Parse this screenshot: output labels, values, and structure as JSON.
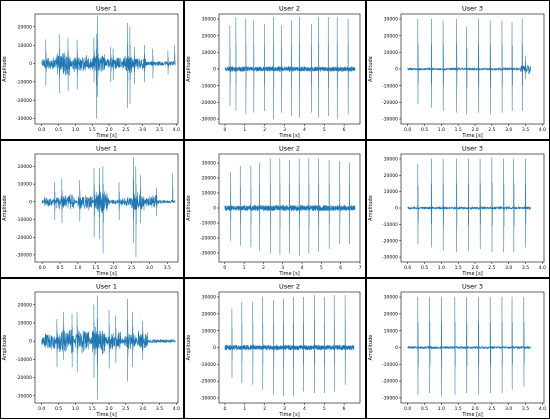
{
  "colors": {
    "line": "#1f77b4",
    "axis": "#000000",
    "border": "#000000",
    "background": "#ffffff"
  },
  "chart_data": [
    {
      "type": "line",
      "title": "User 1",
      "xlabel": "Time [s]",
      "ylabel": "Amplitude",
      "xlim": [
        -0.2,
        4.05
      ],
      "ylim": [
        -33000,
        27000
      ],
      "xticks": [
        "0.0",
        "0.5",
        "1.0",
        "1.5",
        "2.0",
        "2.5",
        "3.0",
        "3.5",
        "4.0"
      ],
      "xtick_values": [
        0,
        0.5,
        1,
        1.5,
        2,
        2.5,
        3,
        3.5,
        4
      ],
      "yticks": [
        "-30000",
        "-20000",
        "-10000",
        "0",
        "10000",
        "20000"
      ],
      "ytick_values": [
        -30000,
        -20000,
        -10000,
        0,
        10000,
        20000
      ],
      "duration": 3.97,
      "noise_amplitude": 3500,
      "noise_until": 3.1,
      "tail_noise": 1500,
      "bursts": [
        [
          0.05,
          0.35,
          4000
        ],
        [
          0.45,
          0.85,
          7000
        ],
        [
          0.95,
          1.35,
          5000
        ],
        [
          1.5,
          1.9,
          6000
        ],
        [
          2.05,
          2.4,
          3000
        ],
        [
          2.45,
          2.7,
          6000
        ],
        [
          2.85,
          3.1,
          4000
        ]
      ],
      "spikes": [
        [
          0.12,
          13000,
          -12000
        ],
        [
          0.52,
          16000,
          -16000
        ],
        [
          0.78,
          14000,
          -15000
        ],
        [
          1.05,
          13000,
          -14000
        ],
        [
          1.55,
          14000,
          -10000
        ],
        [
          1.62,
          16000,
          -30000
        ],
        [
          1.66,
          26000,
          -18000
        ],
        [
          2.05,
          9000,
          -10000
        ],
        [
          2.12,
          8000,
          -9000
        ],
        [
          2.55,
          22000,
          -24000
        ],
        [
          2.62,
          20000,
          -22000
        ],
        [
          2.75,
          9000,
          -11000
        ],
        [
          3.05,
          10000,
          -10000
        ],
        [
          3.3,
          8000,
          -8000
        ],
        [
          3.75,
          7000,
          -6000
        ],
        [
          3.95,
          10000,
          0
        ]
      ]
    },
    {
      "type": "line",
      "title": "User 2",
      "xlabel": "Time [s]",
      "ylabel": "Amplitude",
      "xlim": [
        -0.3,
        6.8
      ],
      "ylim": [
        -33000,
        33000
      ],
      "xticks": [
        "0",
        "1",
        "2",
        "3",
        "4",
        "5",
        "6"
      ],
      "xtick_values": [
        0,
        1,
        2,
        3,
        4,
        5,
        6
      ],
      "yticks": [
        "-30000",
        "-20000",
        "-10000",
        "0",
        "10000",
        "20000",
        "30000"
      ],
      "ytick_values": [
        -30000,
        -20000,
        -10000,
        0,
        10000,
        20000,
        30000
      ],
      "duration": 6.55,
      "noise_amplitude": 1700,
      "noise_until": 6.55,
      "tail_noise": 1700,
      "bursts": [],
      "spikes": [
        [
          0.25,
          26000,
          -22000
        ],
        [
          0.55,
          31000,
          -25000
        ],
        [
          1.05,
          30000,
          -27000
        ],
        [
          1.45,
          29000,
          -26000
        ],
        [
          1.98,
          27000,
          -25000
        ],
        [
          2.45,
          31000,
          -30000
        ],
        [
          2.85,
          26000,
          -26000
        ],
        [
          3.35,
          29000,
          -28000
        ],
        [
          3.75,
          31000,
          -29000
        ],
        [
          4.35,
          27000,
          -26000
        ],
        [
          4.7,
          31000,
          -29000
        ],
        [
          5.2,
          31000,
          -28000
        ],
        [
          5.65,
          31000,
          -30000
        ],
        [
          6.2,
          30000,
          -27000
        ]
      ]
    },
    {
      "type": "line",
      "title": "User 3",
      "xlabel": "Time [s]",
      "ylabel": "Amplitude",
      "xlim": [
        -0.2,
        4.05
      ],
      "ylim": [
        -33000,
        33000
      ],
      "xticks": [
        "0.0",
        "0.5",
        "1.0",
        "1.5",
        "2.0",
        "2.5",
        "3.0",
        "3.5",
        "4.0"
      ],
      "xtick_values": [
        0,
        0.5,
        1,
        1.5,
        2,
        2.5,
        3,
        3.5,
        4
      ],
      "yticks": [
        "-30000",
        "-20000",
        "-10000",
        "0",
        "10000",
        "20000",
        "30000"
      ],
      "ytick_values": [
        -30000,
        -20000,
        -10000,
        0,
        10000,
        20000,
        30000
      ],
      "duration": 3.65,
      "noise_amplitude": 900,
      "noise_until": 3.65,
      "tail_noise": 3500,
      "bursts": [
        [
          3.35,
          3.65,
          3000
        ]
      ],
      "spikes": [
        [
          0.3,
          30000,
          -21000
        ],
        [
          0.7,
          30000,
          -23000
        ],
        [
          1.05,
          29000,
          -25000
        ],
        [
          1.45,
          30000,
          -26000
        ],
        [
          1.75,
          25000,
          -27000
        ],
        [
          2.1,
          30000,
          -26000
        ],
        [
          2.45,
          29000,
          -27000
        ],
        [
          2.8,
          29000,
          -26000
        ],
        [
          3.1,
          28000,
          -25000
        ],
        [
          3.4,
          30000,
          -25000
        ],
        [
          3.5,
          8000,
          -6000
        ]
      ]
    },
    {
      "type": "line",
      "title": "User 1",
      "xlabel": "Time [s]",
      "ylabel": "Amplitude",
      "xlim": [
        -0.2,
        3.8
      ],
      "ylim": [
        -34000,
        27000
      ],
      "xticks": [
        "0.0",
        "0.5",
        "1.0",
        "1.5",
        "2.0",
        "2.5",
        "3.0",
        "3.5"
      ],
      "xtick_values": [
        0,
        0.5,
        1,
        1.5,
        2,
        2.5,
        3,
        3.5
      ],
      "yticks": [
        "-30000",
        "-20000",
        "-10000",
        "0",
        "10000",
        "20000"
      ],
      "ytick_values": [
        -30000,
        -20000,
        -10000,
        0,
        10000,
        20000
      ],
      "duration": 3.72,
      "noise_amplitude": 1500,
      "noise_until": 3.2,
      "tail_noise": 1200,
      "bursts": [
        [
          0.05,
          0.35,
          3000
        ],
        [
          0.4,
          0.9,
          5000
        ],
        [
          1.0,
          1.4,
          5000
        ],
        [
          1.45,
          1.85,
          7000
        ],
        [
          2.2,
          2.5,
          3000
        ],
        [
          2.5,
          2.85,
          6000
        ],
        [
          2.9,
          3.2,
          4000
        ]
      ],
      "spikes": [
        [
          0.35,
          11000,
          -10000
        ],
        [
          0.55,
          13000,
          -12000
        ],
        [
          1.05,
          12000,
          -11000
        ],
        [
          1.45,
          19000,
          -20000
        ],
        [
          1.6,
          19000,
          -21000
        ],
        [
          1.7,
          20000,
          -29000
        ],
        [
          2.15,
          11000,
          -10000
        ],
        [
          2.55,
          25000,
          -23000
        ],
        [
          2.62,
          20000,
          -31000
        ],
        [
          2.75,
          15000,
          -12000
        ],
        [
          3.2,
          8000,
          -8000
        ],
        [
          3.65,
          16000,
          0
        ]
      ]
    },
    {
      "type": "line",
      "title": "User 2",
      "xlabel": "Time [s]",
      "ylabel": "Amplitude",
      "xlim": [
        -0.3,
        7.0
      ],
      "ylim": [
        -36000,
        36000
      ],
      "xticks": [
        "0",
        "1",
        "2",
        "3",
        "4",
        "5",
        "6",
        "7"
      ],
      "xtick_values": [
        0,
        1,
        2,
        3,
        4,
        5,
        6,
        7
      ],
      "yticks": [
        "-30000",
        "-20000",
        "-10000",
        "0",
        "10000",
        "20000",
        "30000"
      ],
      "ytick_values": [
        -30000,
        -20000,
        -10000,
        0,
        10000,
        20000,
        30000
      ],
      "duration": 6.75,
      "noise_amplitude": 2200,
      "noise_until": 6.75,
      "tail_noise": 2200,
      "bursts": [],
      "spikes": [
        [
          0.3,
          24000,
          -22000
        ],
        [
          0.8,
          28000,
          -25000
        ],
        [
          1.35,
          28000,
          -26000
        ],
        [
          1.8,
          30000,
          -28000
        ],
        [
          2.35,
          33000,
          -30000
        ],
        [
          2.85,
          33000,
          -31000
        ],
        [
          3.35,
          32000,
          -30000
        ],
        [
          3.85,
          33000,
          -32000
        ],
        [
          4.35,
          33000,
          -30000
        ],
        [
          4.85,
          33000,
          -29000
        ],
        [
          5.4,
          32000,
          -27000
        ],
        [
          5.95,
          31000,
          -24000
        ],
        [
          6.45,
          30000,
          -24000
        ]
      ]
    },
    {
      "type": "line",
      "title": "User 3",
      "xlabel": "Time [s]",
      "ylabel": "Amplitude",
      "xlim": [
        -0.2,
        4.05
      ],
      "ylim": [
        -33000,
        33000
      ],
      "xticks": [
        "0.0",
        "0.5",
        "1.0",
        "1.5",
        "2.0",
        "2.5",
        "3.0",
        "3.5",
        "4.0"
      ],
      "xtick_values": [
        0,
        0.5,
        1,
        1.5,
        2,
        2.5,
        3,
        3.5,
        4
      ],
      "yticks": [
        "-30000",
        "-20000",
        "-10000",
        "0",
        "10000",
        "20000",
        "30000"
      ],
      "ytick_values": [
        -30000,
        -20000,
        -10000,
        0,
        10000,
        20000,
        30000
      ],
      "duration": 3.65,
      "noise_amplitude": 1000,
      "noise_until": 3.65,
      "tail_noise": 1000,
      "bursts": [],
      "spikes": [
        [
          0.3,
          27000,
          -22000
        ],
        [
          0.7,
          30000,
          -24000
        ],
        [
          1.05,
          30000,
          -26000
        ],
        [
          1.45,
          30000,
          -27000
        ],
        [
          1.8,
          30000,
          -26000
        ],
        [
          2.15,
          30000,
          -25000
        ],
        [
          2.5,
          31000,
          -27000
        ],
        [
          2.85,
          30000,
          -27000
        ],
        [
          3.15,
          30000,
          -27000
        ],
        [
          3.5,
          30000,
          -24000
        ]
      ]
    },
    {
      "type": "line",
      "title": "User 1",
      "xlabel": "Time [s]",
      "ylabel": "Amplitude",
      "xlim": [
        -0.2,
        4.05
      ],
      "ylim": [
        -34000,
        27000
      ],
      "xticks": [
        "0.0",
        "0.5",
        "1.0",
        "1.5",
        "2.0",
        "2.5",
        "3.0",
        "3.5",
        "4.0"
      ],
      "xtick_values": [
        0,
        0.5,
        1,
        1.5,
        2,
        2.5,
        3,
        3.5,
        4
      ],
      "yticks": [
        "-30000",
        "-20000",
        "-10000",
        "0",
        "10000",
        "20000"
      ],
      "ytick_values": [
        -30000,
        -20000,
        -10000,
        0,
        10000,
        20000
      ],
      "duration": 3.97,
      "noise_amplitude": 2500,
      "noise_until": 3.1,
      "tail_noise": 1200,
      "bursts": [
        [
          0.05,
          0.4,
          5000
        ],
        [
          0.45,
          0.95,
          7000
        ],
        [
          1.0,
          1.4,
          7000
        ],
        [
          1.5,
          1.9,
          8000
        ],
        [
          2.0,
          2.35,
          6000
        ],
        [
          2.45,
          2.8,
          5000
        ],
        [
          2.85,
          3.15,
          6000
        ]
      ],
      "spikes": [
        [
          0.45,
          12000,
          -14000
        ],
        [
          0.65,
          16000,
          -10000
        ],
        [
          0.9,
          15000,
          -14000
        ],
        [
          1.05,
          16000,
          -17000
        ],
        [
          1.55,
          20000,
          -20000
        ],
        [
          1.65,
          25000,
          -32000
        ],
        [
          2.0,
          17000,
          -15000
        ],
        [
          2.2,
          14000,
          -12000
        ],
        [
          2.55,
          23000,
          -22000
        ],
        [
          2.7,
          16000,
          -14000
        ],
        [
          3.0,
          11000,
          -10000
        ]
      ]
    },
    {
      "type": "line",
      "title": "User 2",
      "xlabel": "Time [s]",
      "ylabel": "Amplitude",
      "xlim": [
        -0.3,
        6.8
      ],
      "ylim": [
        -33000,
        33000
      ],
      "xticks": [
        "0",
        "1",
        "2",
        "3",
        "4",
        "5",
        "6"
      ],
      "xtick_values": [
        0,
        1,
        2,
        3,
        4,
        5,
        6
      ],
      "yticks": [
        "-30000",
        "-20000",
        "-10000",
        "0",
        "10000",
        "20000",
        "30000"
      ],
      "ytick_values": [
        -30000,
        -20000,
        -10000,
        0,
        10000,
        20000,
        30000
      ],
      "duration": 6.5,
      "noise_amplitude": 1700,
      "noise_until": 6.5,
      "tail_noise": 1700,
      "bursts": [],
      "spikes": [
        [
          0.35,
          23000,
          -18000
        ],
        [
          0.85,
          27000,
          -21000
        ],
        [
          1.4,
          27000,
          -22000
        ],
        [
          1.9,
          30000,
          -25000
        ],
        [
          2.45,
          28000,
          -28000
        ],
        [
          2.95,
          29000,
          -29000
        ],
        [
          3.45,
          30000,
          -29000
        ],
        [
          3.95,
          30000,
          -26000
        ],
        [
          4.5,
          31000,
          -27000
        ],
        [
          5.0,
          30000,
          -27000
        ],
        [
          5.5,
          31000,
          -26000
        ],
        [
          6.05,
          31000,
          -22000
        ]
      ]
    },
    {
      "type": "line",
      "title": "User 3",
      "xlabel": "Time [s]",
      "ylabel": "Amplitude",
      "xlim": [
        -0.2,
        4.05
      ],
      "ylim": [
        -33000,
        33000
      ],
      "xticks": [
        "0.0",
        "0.5",
        "1.0",
        "1.5",
        "2.0",
        "2.5",
        "3.0",
        "3.5",
        "4.0"
      ],
      "xtick_values": [
        0,
        0.5,
        1,
        1.5,
        2,
        2.5,
        3,
        3.5,
        4
      ],
      "yticks": [
        "-30000",
        "-20000",
        "-10000",
        "0",
        "10000",
        "20000",
        "30000"
      ],
      "ytick_values": [
        -30000,
        -20000,
        -10000,
        0,
        10000,
        20000,
        30000
      ],
      "duration": 3.65,
      "noise_amplitude": 900,
      "noise_until": 3.65,
      "tail_noise": 900,
      "bursts": [],
      "spikes": [
        [
          0.3,
          30000,
          -28000
        ],
        [
          0.65,
          30000,
          -27000
        ],
        [
          1.0,
          30000,
          -29000
        ],
        [
          1.4,
          30000,
          -28000
        ],
        [
          1.75,
          30000,
          -27000
        ],
        [
          2.1,
          30000,
          -28000
        ],
        [
          2.45,
          30000,
          -27000
        ],
        [
          2.8,
          30000,
          -27000
        ],
        [
          3.1,
          30000,
          -25000
        ],
        [
          3.45,
          30000,
          -23000
        ]
      ]
    }
  ]
}
